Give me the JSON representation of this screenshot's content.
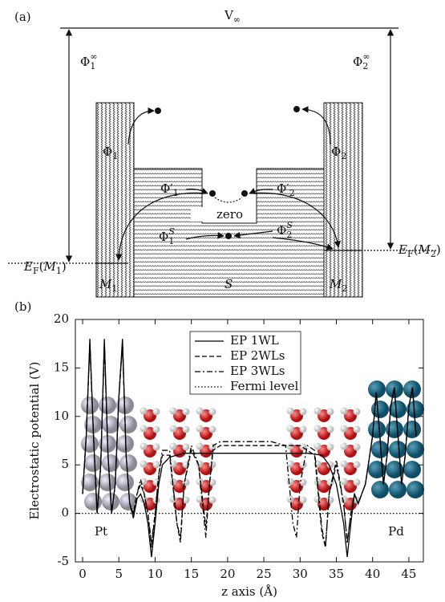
{
  "diagram": {
    "panel_label": "(a)",
    "labels": {
      "v_inf": [
        {
          "text": "V"
        },
        {
          "text": "∞",
          "shift": "sub"
        }
      ],
      "phi1_inf": [
        {
          "text": "Φ"
        },
        {
          "text": "1",
          "shift": "sub"
        },
        {
          "text": "∞",
          "shift": "sup"
        }
      ],
      "phi2_inf": [
        {
          "text": "Φ"
        },
        {
          "text": "2",
          "shift": "sub"
        },
        {
          "text": "∞",
          "shift": "sup"
        }
      ],
      "phi1": [
        {
          "text": "Φ"
        },
        {
          "text": "1",
          "shift": "sub"
        }
      ],
      "phi2": [
        {
          "text": "Φ"
        },
        {
          "text": "2",
          "shift": "sub"
        }
      ],
      "phi1p": [
        {
          "text": "Φ′"
        },
        {
          "text": "1",
          "shift": "sub"
        }
      ],
      "phi2p": [
        {
          "text": "Φ′"
        },
        {
          "text": "2",
          "shift": "sub"
        }
      ],
      "zero": [
        {
          "text": "zero"
        }
      ],
      "phi1s": [
        {
          "text": "Φ"
        },
        {
          "text": "1",
          "shift": "sub"
        },
        {
          "text": "S",
          "shift": "sup",
          "italic": true
        }
      ],
      "phi2s": [
        {
          "text": "Φ"
        },
        {
          "text": "2",
          "shift": "sub"
        },
        {
          "text": "S",
          "shift": "sup",
          "italic": true
        }
      ],
      "ef_m1": [
        {
          "text": "E",
          "italic": true
        },
        {
          "text": "F",
          "shift": "sub"
        },
        {
          "text": "("
        },
        {
          "text": "M",
          "italic": true
        },
        {
          "text": "1",
          "shift": "sub"
        },
        {
          "text": ")"
        }
      ],
      "ef_m2": [
        {
          "text": "E",
          "italic": true
        },
        {
          "text": "F",
          "shift": "sub"
        },
        {
          "text": "("
        },
        {
          "text": "M",
          "italic": true
        },
        {
          "text": "2",
          "shift": "sub"
        },
        {
          "text": ")"
        }
      ],
      "m1": [
        {
          "text": "M",
          "italic": true
        },
        {
          "text": "1",
          "shift": "sub"
        }
      ],
      "s": [
        {
          "text": "S",
          "italic": true
        }
      ],
      "m2": [
        {
          "text": "M",
          "italic": true
        },
        {
          "text": "2",
          "shift": "sub"
        }
      ]
    }
  },
  "chart_data": {
    "type": "line",
    "panel_label": "(b)",
    "x_label": "z axis (Å)",
    "y_label": "Electrostatic potential (V)",
    "annotations": [
      "Pt",
      "Pd"
    ],
    "xlim": [
      -1,
      47
    ],
    "ylim": [
      -5,
      20
    ],
    "xticks": [
      0,
      5,
      10,
      15,
      20,
      25,
      30,
      35,
      40,
      45
    ],
    "yticks": [
      -5,
      0,
      5,
      10,
      15,
      20
    ],
    "legend": "top-center",
    "x": [
      0,
      0.5,
      1,
      1.5,
      2,
      2.5,
      3,
      3.5,
      4,
      4.5,
      5,
      5.5,
      6,
      6.5,
      7,
      7.5,
      8,
      8.5,
      9,
      9.5,
      10,
      10.5,
      11,
      12,
      13,
      13.5,
      14,
      15,
      16,
      17,
      17.5,
      18,
      19,
      20,
      22,
      24,
      26,
      28,
      29,
      29.5,
      30,
      31,
      32,
      33,
      33.5,
      34,
      35,
      36,
      36.5,
      37,
      37.5,
      38,
      39,
      40,
      40.5,
      41,
      41.5,
      42,
      42.5,
      43,
      43.5,
      44,
      44.5,
      45,
      45.5,
      46
    ],
    "series": [
      {
        "name": "EP 1WL",
        "color": "#000000",
        "dash": "solid",
        "values": [
          2,
          8,
          18,
          8,
          0,
          5,
          18,
          6,
          0,
          3,
          12,
          18,
          6,
          1,
          -0.5,
          1.5,
          2,
          1,
          -1,
          -4.5,
          -1,
          3,
          5,
          5.8,
          6,
          6.1,
          6.2,
          6.2,
          6.2,
          6.2,
          6.2,
          6.2,
          6.2,
          6.2,
          6.2,
          6.2,
          6.2,
          6.2,
          6.2,
          6.2,
          6.2,
          6.2,
          6.1,
          6,
          5.5,
          5,
          3,
          -1,
          -4.5,
          -1,
          2,
          1,
          3,
          8,
          12.5,
          8,
          3,
          6,
          11,
          13,
          8,
          3,
          6,
          11,
          13,
          8
        ]
      },
      {
        "name": "EP 2WLs",
        "color": "#000000",
        "dash": "dashed",
        "values": [
          2,
          8,
          17.5,
          8,
          0,
          5,
          17.5,
          6,
          0,
          3,
          12,
          17.5,
          6,
          1,
          0,
          2,
          3,
          2,
          0,
          -3.5,
          0,
          4,
          6,
          6,
          -1,
          -3,
          3,
          6.5,
          5,
          -1.5,
          3,
          6.5,
          7,
          7,
          7,
          7,
          7,
          7,
          7,
          7,
          7,
          6.5,
          6,
          -2,
          -3.5,
          2,
          5,
          1,
          -3,
          0,
          2,
          1,
          3,
          8,
          12.5,
          8,
          3,
          6,
          11,
          13,
          8,
          3,
          6,
          11,
          13,
          8
        ]
      },
      {
        "name": "EP 3WLs",
        "color": "#000000",
        "dash": "dashdot",
        "values": [
          2,
          8,
          17.5,
          8,
          0,
          5,
          17.5,
          6,
          0,
          3,
          12,
          17.5,
          6,
          1,
          0,
          2,
          3.5,
          2,
          0,
          -3,
          0,
          4,
          6.5,
          6.5,
          -1,
          -2.5,
          3,
          7,
          5,
          -2.5,
          3,
          7,
          7.4,
          7.4,
          7.4,
          7.4,
          7.4,
          7,
          -1,
          -2.5,
          3,
          7,
          6.5,
          -1.5,
          -3.5,
          2,
          5.5,
          1,
          -3,
          0,
          2,
          1,
          3,
          8,
          12.5,
          8,
          3,
          6,
          11,
          13,
          8,
          3,
          6,
          11,
          13,
          8
        ]
      },
      {
        "name": "Fermi level",
        "color": "#000000",
        "dash": "dotted",
        "x": [
          -1,
          47
        ],
        "values": [
          0,
          0
        ]
      }
    ]
  }
}
